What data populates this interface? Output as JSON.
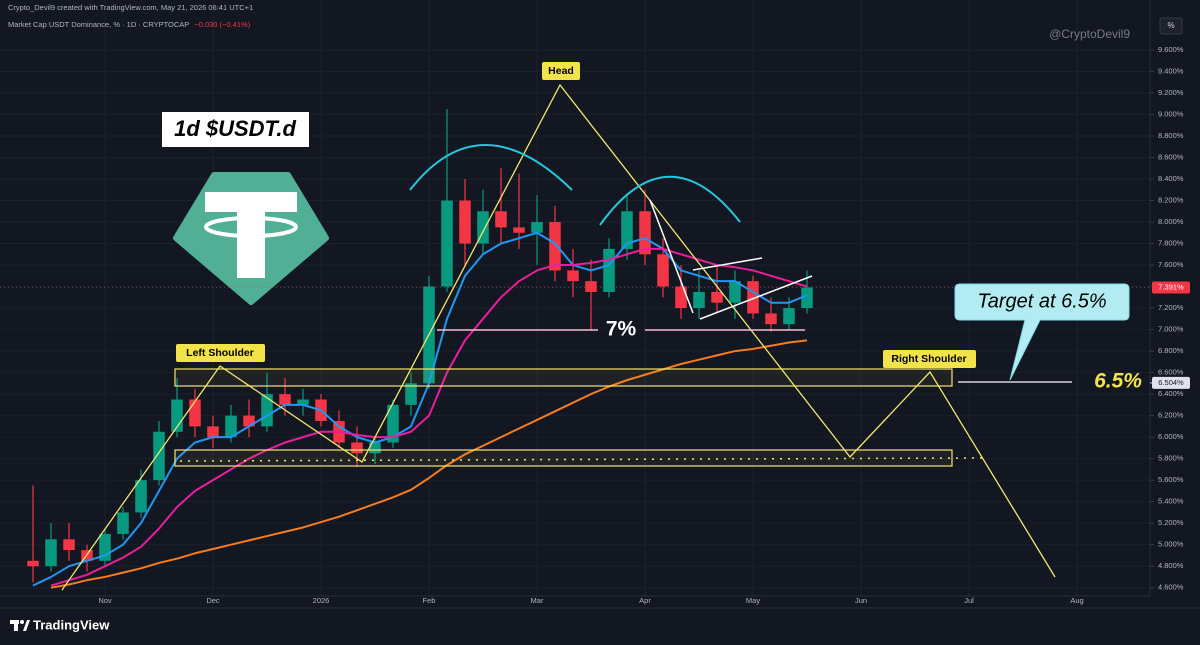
{
  "header": {
    "credit": "Crypto_Devil9 created with TradingView.com, May 21, 2026 06:41 UTC+1",
    "symbol": "Market Cap USDT Dominance, % · 1D · CRYPTOCAP",
    "change": "−0.030 (−0.41%)",
    "scale_button": "%",
    "watermark": "@CryptoDevil9"
  },
  "annotations": {
    "ticker": "1d $USDT.d",
    "head": "Head",
    "left_shoulder": "Left Shoulder",
    "right_shoulder": "Right Shoulder",
    "neckline": "7%",
    "target": "Target at 6.5%",
    "target_level": "6.5%"
  },
  "branding": "TradingView",
  "chart_data": {
    "type": "candlestick",
    "grid": true,
    "up_color": "#089981",
    "down_color": "#f23645",
    "ylim": [
      4.56,
      9.99
    ],
    "yticks": [
      {
        "value": 4.6,
        "label": "4.600%"
      },
      {
        "value": 4.8,
        "label": "4.800%"
      },
      {
        "value": 5.0,
        "label": "5.000%"
      },
      {
        "value": 5.2,
        "label": "5.200%"
      },
      {
        "value": 5.4,
        "label": "5.400%"
      },
      {
        "value": 5.6,
        "label": "5.600%"
      },
      {
        "value": 5.8,
        "label": "5.800%"
      },
      {
        "value": 6.0,
        "label": "6.000%"
      },
      {
        "value": 6.2,
        "label": "6.200%"
      },
      {
        "value": 6.4,
        "label": "6.400%"
      },
      {
        "value": 6.6,
        "label": "6.600%"
      },
      {
        "value": 6.8,
        "label": "6.800%"
      },
      {
        "value": 7.0,
        "label": "7.000%"
      },
      {
        "value": 7.2,
        "label": "7.200%"
      },
      {
        "value": 7.4,
        "label": "7.400%"
      },
      {
        "value": 7.6,
        "label": "7.600%"
      },
      {
        "value": 7.8,
        "label": "7.800%"
      },
      {
        "value": 8.0,
        "label": "8.000%"
      },
      {
        "value": 8.2,
        "label": "8.200%"
      },
      {
        "value": 8.4,
        "label": "8.400%"
      },
      {
        "value": 8.6,
        "label": "8.600%"
      },
      {
        "value": 8.8,
        "label": "8.800%"
      },
      {
        "value": 9.0,
        "label": "9.000%"
      },
      {
        "value": 9.2,
        "label": "9.200%"
      },
      {
        "value": 9.4,
        "label": "9.400%"
      },
      {
        "value": 9.6,
        "label": "9.600%"
      }
    ],
    "categories": [
      null,
      null,
      null,
      null,
      "Nov",
      null,
      null,
      null,
      null,
      null,
      "Dec",
      null,
      null,
      null,
      null,
      null,
      "2026",
      null,
      null,
      null,
      null,
      null,
      "Feb",
      null,
      null,
      null,
      null,
      null,
      "Mar",
      null,
      null,
      null,
      null,
      null,
      "Apr",
      null,
      null,
      null,
      null,
      null,
      "May",
      null,
      null,
      null,
      null,
      null,
      "Jun",
      null,
      null,
      null,
      null,
      null,
      "Jul",
      null,
      null,
      null,
      null,
      null,
      "Aug",
      null
    ],
    "open": [
      4.85,
      4.8,
      5.05,
      4.95,
      4.85,
      5.1,
      5.3,
      5.6,
      6.05,
      6.35,
      6.1,
      6.0,
      6.2,
      6.1,
      6.4,
      6.3,
      6.35,
      6.15,
      5.95,
      5.85,
      5.95,
      6.3,
      6.5,
      7.4,
      8.2,
      7.8,
      8.1,
      7.95,
      7.9,
      8.0,
      7.55,
      7.45,
      7.35,
      7.75,
      8.1,
      7.7,
      7.4,
      7.2,
      7.35,
      7.25,
      7.45,
      7.15,
      7.05,
      7.2,
      null,
      null,
      null,
      null,
      null,
      null,
      null,
      null,
      null,
      null,
      null,
      null,
      null,
      null,
      null,
      null
    ],
    "high": [
      5.55,
      5.2,
      5.2,
      5.0,
      5.15,
      5.35,
      5.7,
      6.15,
      6.55,
      6.45,
      6.2,
      6.3,
      6.35,
      6.6,
      6.55,
      6.45,
      6.4,
      6.25,
      6.1,
      6.0,
      6.35,
      6.6,
      7.5,
      9.05,
      8.4,
      8.3,
      8.5,
      8.45,
      8.25,
      8.15,
      7.75,
      7.65,
      7.85,
      8.25,
      8.3,
      7.85,
      7.6,
      7.55,
      7.6,
      7.55,
      7.5,
      7.3,
      7.3,
      7.55,
      null,
      null,
      null,
      null,
      null,
      null,
      null,
      null,
      null,
      null,
      null,
      null,
      null,
      null,
      null,
      null
    ],
    "low": [
      4.65,
      4.75,
      4.85,
      4.75,
      4.8,
      5.05,
      5.25,
      5.55,
      6.0,
      6.0,
      5.9,
      5.95,
      6.0,
      6.05,
      6.2,
      6.2,
      6.1,
      5.9,
      5.72,
      5.75,
      5.9,
      6.2,
      6.45,
      7.35,
      7.6,
      7.7,
      7.8,
      7.75,
      7.6,
      7.45,
      7.3,
      7.0,
      7.3,
      7.65,
      7.6,
      7.3,
      7.1,
      7.1,
      7.15,
      7.1,
      7.1,
      6.98,
      7.0,
      7.15,
      null,
      null,
      null,
      null,
      null,
      null,
      null,
      null,
      null,
      null,
      null,
      null,
      null,
      null,
      null,
      null
    ],
    "close": [
      4.8,
      5.05,
      4.95,
      4.85,
      5.1,
      5.3,
      5.6,
      6.05,
      6.35,
      6.1,
      6.0,
      6.2,
      6.1,
      6.4,
      6.3,
      6.35,
      6.15,
      5.95,
      5.85,
      5.95,
      6.3,
      6.5,
      7.4,
      8.2,
      7.8,
      8.1,
      7.95,
      7.9,
      8.0,
      7.55,
      7.45,
      7.35,
      7.75,
      8.1,
      7.7,
      7.4,
      7.2,
      7.35,
      7.25,
      7.45,
      7.15,
      7.05,
      7.2,
      7.391,
      null,
      null,
      null,
      null,
      null,
      null,
      null,
      null,
      null,
      null,
      null,
      null,
      null,
      null,
      null,
      null
    ],
    "overlays": [
      {
        "color": "#2196f3",
        "values": [
          4.62,
          4.7,
          4.8,
          4.85,
          4.9,
          5.0,
          5.2,
          5.5,
          5.8,
          5.95,
          6.0,
          6.0,
          6.1,
          6.2,
          6.3,
          6.3,
          6.25,
          6.1,
          6.0,
          5.95,
          6.0,
          6.1,
          6.5,
          7.1,
          7.5,
          7.7,
          7.8,
          7.85,
          7.9,
          7.8,
          7.6,
          7.55,
          7.6,
          7.8,
          7.85,
          7.75,
          7.55,
          7.5,
          7.45,
          7.45,
          7.35,
          7.25,
          7.25,
          7.32,
          null,
          null,
          null,
          null,
          null,
          null,
          null,
          null,
          null,
          null,
          null,
          null,
          null,
          null,
          null,
          null
        ]
      },
      {
        "color": "#e91e9c",
        "values": [
          null,
          4.62,
          4.67,
          4.72,
          4.8,
          4.88,
          4.98,
          5.15,
          5.35,
          5.5,
          5.6,
          5.7,
          5.8,
          5.88,
          5.95,
          6.0,
          6.05,
          6.05,
          6.02,
          6.0,
          6.0,
          6.05,
          6.2,
          6.6,
          6.9,
          7.1,
          7.3,
          7.45,
          7.55,
          7.6,
          7.6,
          7.62,
          7.65,
          7.7,
          7.75,
          7.75,
          7.7,
          7.65,
          7.6,
          7.58,
          7.55,
          7.5,
          7.45,
          7.4,
          null,
          null,
          null,
          null,
          null,
          null,
          null,
          null,
          null,
          null,
          null,
          null,
          null,
          null,
          null,
          null
        ]
      },
      {
        "color": "#f57c1f",
        "values": [
          null,
          4.6,
          4.63,
          4.67,
          4.7,
          4.74,
          4.78,
          4.83,
          4.87,
          4.92,
          4.96,
          5.0,
          5.04,
          5.08,
          5.12,
          5.16,
          5.21,
          5.26,
          5.32,
          5.38,
          5.44,
          5.51,
          5.62,
          5.74,
          5.84,
          5.92,
          6.0,
          6.08,
          6.16,
          6.24,
          6.32,
          6.4,
          6.47,
          6.53,
          6.58,
          6.63,
          6.68,
          6.72,
          6.76,
          6.8,
          6.82,
          6.85,
          6.88,
          6.9,
          null,
          null,
          null,
          null,
          null,
          null,
          null,
          null,
          null,
          null,
          null,
          null,
          null,
          null,
          null,
          null
        ]
      }
    ],
    "last_price": {
      "value": 7.391,
      "label": "7.391%"
    },
    "level_marker": {
      "value": 6.504,
      "label": "6.504%"
    }
  }
}
